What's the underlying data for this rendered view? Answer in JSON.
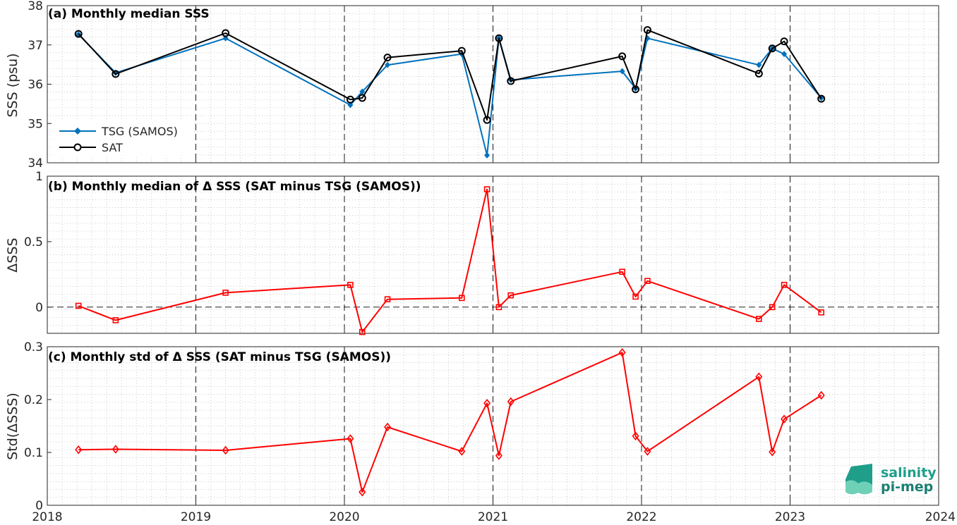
{
  "colors": {
    "tsg": "#0072BD",
    "sat": "#000000",
    "delta": "#FF0000",
    "grid": "#B8B8B8",
    "axis": "#262626"
  },
  "x_ticks": [
    "2018",
    "2019",
    "2020",
    "2021",
    "2022",
    "2023",
    "2024"
  ],
  "logo": {
    "line1": "salinity",
    "line2": "pi-mep"
  },
  "chart_data": [
    {
      "id": "a",
      "type": "line",
      "title": "(a) Monthly median SSS",
      "ylabel": "SSS (psu)",
      "xlim": [
        2018,
        2024
      ],
      "ylim": [
        34,
        38
      ],
      "yticks": [
        "34",
        "35",
        "36",
        "37",
        "38"
      ],
      "legend": "bottom-left",
      "x": [
        2018.21,
        2018.46,
        2019.2,
        2020.04,
        2020.12,
        2020.29,
        2020.79,
        2020.96,
        2021.04,
        2021.12,
        2021.87,
        2021.96,
        2022.04,
        2022.79,
        2022.88,
        2022.96,
        2023.21
      ],
      "series": [
        {
          "name": "TSG (SAMOS)",
          "marker": "diamond-filled",
          "values": [
            37.27,
            36.29,
            37.17,
            35.47,
            35.81,
            36.49,
            36.77,
            34.19,
            37.17,
            36.11,
            36.33,
            35.89,
            37.17,
            36.49,
            36.91,
            36.77,
            35.65
          ]
        },
        {
          "name": "SAT",
          "marker": "circle-open",
          "values": [
            37.28,
            36.26,
            37.3,
            35.61,
            35.65,
            36.68,
            36.85,
            35.09,
            37.17,
            36.08,
            36.71,
            35.87,
            37.38,
            36.27,
            36.91,
            37.09,
            35.63
          ]
        }
      ]
    },
    {
      "id": "b",
      "type": "line",
      "title": "(b) Monthly median of Δ SSS (SAT minus TSG (SAMOS))",
      "ylabel": "ΔSSS",
      "xlim": [
        2018,
        2024
      ],
      "ylim": [
        -0.2,
        1
      ],
      "yticks": [
        "0",
        "0.5",
        "1"
      ],
      "reference_line": 0,
      "x": [
        2018.21,
        2018.46,
        2019.2,
        2020.04,
        2020.12,
        2020.29,
        2020.79,
        2020.96,
        2021.04,
        2021.12,
        2021.87,
        2021.96,
        2022.04,
        2022.79,
        2022.88,
        2022.96,
        2023.21
      ],
      "series": [
        {
          "name": "",
          "marker": "square-open",
          "values": [
            0.01,
            -0.1,
            0.11,
            0.17,
            -0.19,
            0.06,
            0.07,
            0.9,
            0.0,
            0.09,
            0.27,
            0.08,
            0.2,
            -0.09,
            0.0,
            0.17,
            -0.04
          ]
        }
      ]
    },
    {
      "id": "c",
      "type": "line",
      "title": "(c) Monthly std of Δ SSS (SAT minus TSG (SAMOS))",
      "ylabel": "Std(ΔSSS)",
      "xlim": [
        2018,
        2024
      ],
      "ylim": [
        0,
        0.3
      ],
      "yticks": [
        "0",
        "0.1",
        "0.2",
        "0.3"
      ],
      "x": [
        2018.21,
        2018.46,
        2019.2,
        2020.04,
        2020.12,
        2020.29,
        2020.79,
        2020.96,
        2021.04,
        2021.12,
        2021.87,
        2021.96,
        2022.04,
        2022.79,
        2022.88,
        2022.96,
        2023.21
      ],
      "series": [
        {
          "name": "",
          "marker": "diamond-open",
          "values": [
            0.105,
            0.106,
            0.104,
            0.126,
            0.025,
            0.148,
            0.102,
            0.193,
            0.094,
            0.196,
            0.289,
            0.131,
            0.102,
            0.243,
            0.101,
            0.163,
            0.208
          ]
        }
      ]
    }
  ]
}
